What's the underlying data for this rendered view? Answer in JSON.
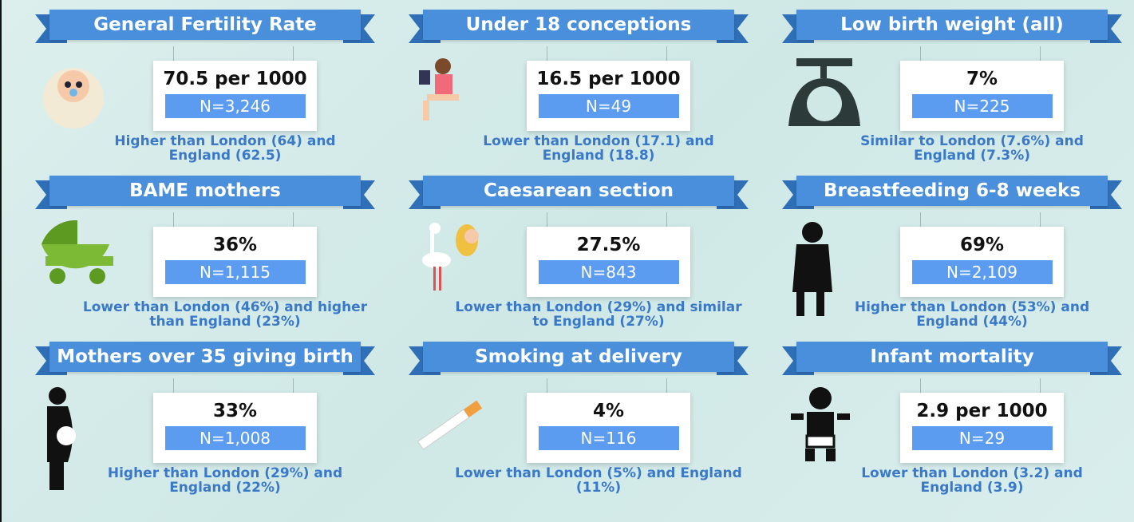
{
  "panels": [
    {
      "title": "General Fertility Rate",
      "value": "70.5 per 1000",
      "n": "N=3,246",
      "comparison": "Higher than London (64) and England (62.5)"
    },
    {
      "title": "Under 18 conceptions",
      "value": "16.5 per 1000",
      "n": "N=49",
      "comparison": "Lower than London (17.1) and England (18.8)"
    },
    {
      "title": "Low birth weight (all)",
      "value": "7%",
      "n": "N=225",
      "comparison": "Similar to London (7.6%) and England (7.3%)"
    },
    {
      "title": "BAME mothers",
      "value": "36%",
      "n": "N=1,115",
      "comparison": "Lower than London (46%) and higher than England (23%)"
    },
    {
      "title": "Caesarean section",
      "value": "27.5%",
      "n": "N=843",
      "comparison": "Lower than London (29%) and similar to England (27%)"
    },
    {
      "title": "Breastfeeding 6-8 weeks",
      "value": "69%",
      "n": "N=2,109",
      "comparison": "Higher than London (53%) and England (44%)"
    },
    {
      "title": "Mothers over 35 giving birth",
      "value": "33%",
      "n": "N=1,008",
      "comparison": "Higher than London (29%) and England (22%)"
    },
    {
      "title": "Smoking at delivery",
      "value": "4%",
      "n": "N=116",
      "comparison": "Lower than London (5%) and England (11%)"
    },
    {
      "title": "Infant mortality",
      "value": "2.9 per 1000",
      "n": "N=29",
      "comparison": "Lower than London (3.2) and England (3.9)"
    }
  ]
}
